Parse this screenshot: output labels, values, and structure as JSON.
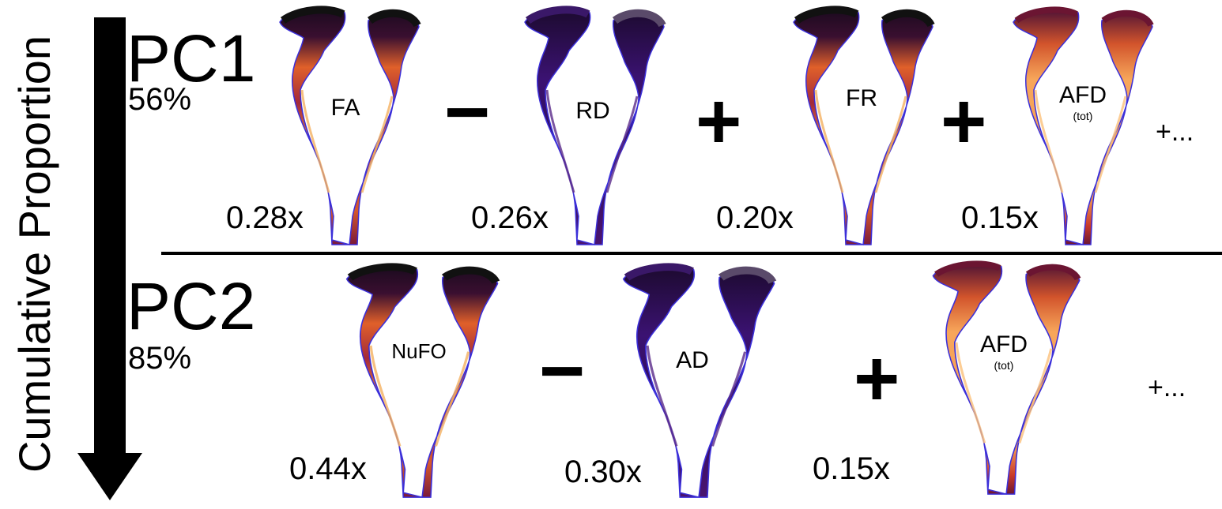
{
  "axis": {
    "label": "Cumulative Proportion"
  },
  "colors": {
    "hot_light": "#f7a65a",
    "hot_mid": "#d94f2a",
    "hot_dark": "#6b1532",
    "cold_dark": "#2a0b4a",
    "cold_mid": "#3a1070",
    "outline": "#3b2fd9"
  },
  "pc1": {
    "title": "PC1",
    "percent": "56%",
    "terms": [
      {
        "coef": "0.28x",
        "metric": "FA",
        "sub": "",
        "scheme": "hot"
      },
      {
        "op": "−",
        "coef": "0.26x",
        "metric": "RD",
        "sub": "",
        "scheme": "cold"
      },
      {
        "op": "+",
        "coef": "0.20x",
        "metric": "FR",
        "sub": "",
        "scheme": "hot"
      },
      {
        "op": "+",
        "coef": "0.15x",
        "metric": "AFD",
        "sub": "(tot)",
        "scheme": "light"
      }
    ],
    "more": "+..."
  },
  "pc2": {
    "title": "PC2",
    "percent": "85%",
    "terms": [
      {
        "coef": "0.44x",
        "metric": "NuFO",
        "sub": "",
        "scheme": "hot"
      },
      {
        "op": "−",
        "coef": "0.30x",
        "metric": "AD",
        "sub": "",
        "scheme": "cold"
      },
      {
        "op": "+",
        "coef": "0.15x",
        "metric": "AFD",
        "sub": "(tot)",
        "scheme": "light"
      }
    ],
    "more": "+..."
  }
}
